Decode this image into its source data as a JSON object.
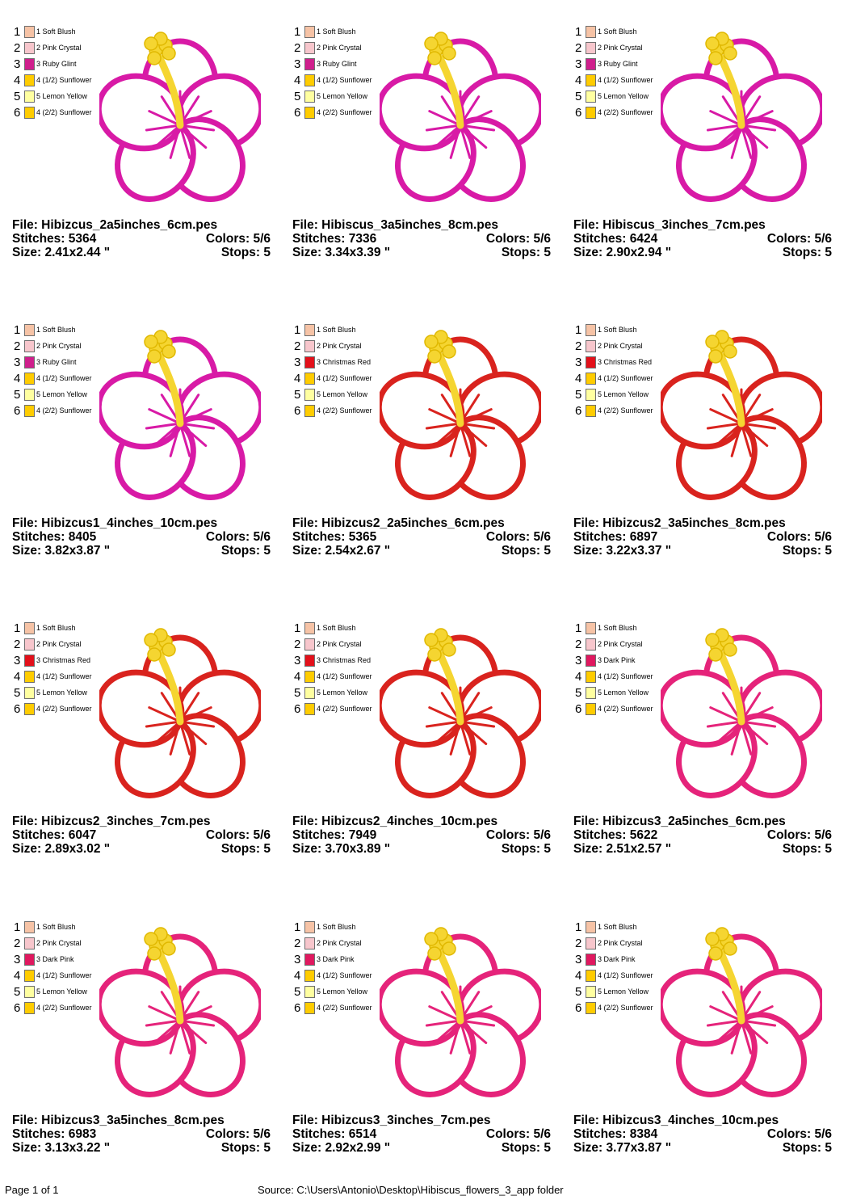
{
  "footer": {
    "page": "Page 1 of 1",
    "source": "Source: C:\\Users\\Antonio\\Desktop\\Hibiscus_flowers_3_app folder"
  },
  "designs": [
    {
      "file": "File: Hibizcus_2a5inches_6cm.pes",
      "stitches": "Stitches: 5364",
      "colors": "Colors: 5/6",
      "size": "Size: 2.41x2.44 \"",
      "stops": "Stops: 5",
      "petal": "#d81aa6",
      "threads": [
        {
          "num": "1",
          "name": "1 Soft Blush",
          "color": "#f6c3a6"
        },
        {
          "num": "2",
          "name": "2 Pink Crystal",
          "color": "#f7c6cc"
        },
        {
          "num": "3",
          "name": "3 Ruby Glint",
          "color": "#cf1f8c"
        },
        {
          "num": "4",
          "name": "4 (1/2) Sunflower",
          "color": "#ffcc00"
        },
        {
          "num": "5",
          "name": "5 Lemon Yellow",
          "color": "#ffffa0"
        },
        {
          "num": "6",
          "name": "4 (2/2) Sunflower",
          "color": "#ffcc00"
        }
      ]
    },
    {
      "file": "File: Hibiscus_3a5inches_8cm.pes",
      "stitches": "Stitches: 7336",
      "colors": "Colors: 5/6",
      "size": "Size: 3.34x3.39 \"",
      "stops": "Stops: 5",
      "petal": "#d81aa6",
      "threads": [
        {
          "num": "1",
          "name": "1 Soft Blush",
          "color": "#f6c3a6"
        },
        {
          "num": "2",
          "name": "2 Pink Crystal",
          "color": "#f7c6cc"
        },
        {
          "num": "3",
          "name": "3 Ruby Glint",
          "color": "#cf1f8c"
        },
        {
          "num": "4",
          "name": "4 (1/2) Sunflower",
          "color": "#ffcc00"
        },
        {
          "num": "5",
          "name": "5 Lemon Yellow",
          "color": "#ffffa0"
        },
        {
          "num": "6",
          "name": "4 (2/2) Sunflower",
          "color": "#ffcc00"
        }
      ]
    },
    {
      "file": "File: Hibiscus_3inches_7cm.pes",
      "stitches": "Stitches: 6424",
      "colors": "Colors: 5/6",
      "size": "Size: 2.90x2.94 \"",
      "stops": "Stops: 5",
      "petal": "#d81aa6",
      "threads": [
        {
          "num": "1",
          "name": "1 Soft Blush",
          "color": "#f6c3a6"
        },
        {
          "num": "2",
          "name": "2 Pink Crystal",
          "color": "#f7c6cc"
        },
        {
          "num": "3",
          "name": "3 Ruby Glint",
          "color": "#cf1f8c"
        },
        {
          "num": "4",
          "name": "4 (1/2) Sunflower",
          "color": "#ffcc00"
        },
        {
          "num": "5",
          "name": "5 Lemon Yellow",
          "color": "#ffffa0"
        },
        {
          "num": "6",
          "name": "4 (2/2) Sunflower",
          "color": "#ffcc00"
        }
      ]
    },
    {
      "file": "File: Hibizcus1_4inches_10cm.pes",
      "stitches": "Stitches: 8405",
      "colors": "Colors: 5/6",
      "size": "Size: 3.82x3.87 \"",
      "stops": "Stops: 5",
      "petal": "#d81aa6",
      "threads": [
        {
          "num": "1",
          "name": "1 Soft Blush",
          "color": "#f6c3a6"
        },
        {
          "num": "2",
          "name": "2 Pink Crystal",
          "color": "#f7c6cc"
        },
        {
          "num": "3",
          "name": "3 Ruby Glint",
          "color": "#cf1f8c"
        },
        {
          "num": "4",
          "name": "4 (1/2) Sunflower",
          "color": "#ffcc00"
        },
        {
          "num": "5",
          "name": "5 Lemon Yellow",
          "color": "#ffffa0"
        },
        {
          "num": "6",
          "name": "4 (2/2) Sunflower",
          "color": "#ffcc00"
        }
      ]
    },
    {
      "file": "File: Hibizcus2_2a5inches_6cm.pes",
      "stitches": "Stitches: 5365",
      "colors": "Colors: 5/6",
      "size": "Size: 2.54x2.67 \"",
      "stops": "Stops: 5",
      "petal": "#d9231e",
      "threads": [
        {
          "num": "1",
          "name": "1 Soft Blush",
          "color": "#f6c3a6"
        },
        {
          "num": "2",
          "name": "2 Pink Crystal",
          "color": "#f7c6cc"
        },
        {
          "num": "3",
          "name": "3 Christmas Red",
          "color": "#e3101a"
        },
        {
          "num": "4",
          "name": "4 (1/2) Sunflower",
          "color": "#ffcc00"
        },
        {
          "num": "5",
          "name": "5 Lemon Yellow",
          "color": "#ffffa0"
        },
        {
          "num": "6",
          "name": "4 (2/2) Sunflower",
          "color": "#ffcc00"
        }
      ]
    },
    {
      "file": "File: Hibizcus2_3a5inches_8cm.pes",
      "stitches": "Stitches: 6897",
      "colors": "Colors: 5/6",
      "size": "Size: 3.22x3.37 \"",
      "stops": "Stops: 5",
      "petal": "#d9231e",
      "threads": [
        {
          "num": "1",
          "name": "1 Soft Blush",
          "color": "#f6c3a6"
        },
        {
          "num": "2",
          "name": "2 Pink Crystal",
          "color": "#f7c6cc"
        },
        {
          "num": "3",
          "name": "3 Christmas Red",
          "color": "#e3101a"
        },
        {
          "num": "4",
          "name": "4 (1/2) Sunflower",
          "color": "#ffcc00"
        },
        {
          "num": "5",
          "name": "5 Lemon Yellow",
          "color": "#ffffa0"
        },
        {
          "num": "6",
          "name": "4 (2/2) Sunflower",
          "color": "#ffcc00"
        }
      ]
    },
    {
      "file": "File: Hibizcus2_3inches_7cm.pes",
      "stitches": "Stitches: 6047",
      "colors": "Colors: 5/6",
      "size": "Size: 2.89x3.02 \"",
      "stops": "Stops: 5",
      "petal": "#d9231e",
      "threads": [
        {
          "num": "1",
          "name": "1 Soft Blush",
          "color": "#f6c3a6"
        },
        {
          "num": "2",
          "name": "2 Pink Crystal",
          "color": "#f7c6cc"
        },
        {
          "num": "3",
          "name": "3 Christmas Red",
          "color": "#e3101a"
        },
        {
          "num": "4",
          "name": "4 (1/2) Sunflower",
          "color": "#ffcc00"
        },
        {
          "num": "5",
          "name": "5 Lemon Yellow",
          "color": "#ffffa0"
        },
        {
          "num": "6",
          "name": "4 (2/2) Sunflower",
          "color": "#ffcc00"
        }
      ]
    },
    {
      "file": "File: Hibizcus2_4inches_10cm.pes",
      "stitches": "Stitches: 7949",
      "colors": "Colors: 5/6",
      "size": "Size: 3.70x3.89 \"",
      "stops": "Stops: 5",
      "petal": "#d9231e",
      "threads": [
        {
          "num": "1",
          "name": "1 Soft Blush",
          "color": "#f6c3a6"
        },
        {
          "num": "2",
          "name": "2 Pink Crystal",
          "color": "#f7c6cc"
        },
        {
          "num": "3",
          "name": "3 Christmas Red",
          "color": "#e3101a"
        },
        {
          "num": "4",
          "name": "4 (1/2) Sunflower",
          "color": "#ffcc00"
        },
        {
          "num": "5",
          "name": "5 Lemon Yellow",
          "color": "#ffffa0"
        },
        {
          "num": "6",
          "name": "4 (2/2) Sunflower",
          "color": "#ffcc00"
        }
      ]
    },
    {
      "file": "File: Hibizcus3_2a5inches_6cm.pes",
      "stitches": "Stitches: 5622",
      "colors": "Colors: 5/6",
      "size": "Size: 2.51x2.57 \"",
      "stops": "Stops: 5",
      "petal": "#e5237a",
      "threads": [
        {
          "num": "1",
          "name": "1 Soft Blush",
          "color": "#f6c3a6"
        },
        {
          "num": "2",
          "name": "2 Pink Crystal",
          "color": "#f7c6cc"
        },
        {
          "num": "3",
          "name": "3 Dark Pink",
          "color": "#e0185f"
        },
        {
          "num": "4",
          "name": "4 (1/2) Sunflower",
          "color": "#ffcc00"
        },
        {
          "num": "5",
          "name": "5 Lemon Yellow",
          "color": "#ffffa0"
        },
        {
          "num": "6",
          "name": "4 (2/2) Sunflower",
          "color": "#ffcc00"
        }
      ]
    },
    {
      "file": "File: Hibizcus3_3a5inches_8cm.pes",
      "stitches": "Stitches: 6983",
      "colors": "Colors: 5/6",
      "size": "Size: 3.13x3.22 \"",
      "stops": "Stops: 5",
      "petal": "#e5237a",
      "threads": [
        {
          "num": "1",
          "name": "1 Soft Blush",
          "color": "#f6c3a6"
        },
        {
          "num": "2",
          "name": "2 Pink Crystal",
          "color": "#f7c6cc"
        },
        {
          "num": "3",
          "name": "3 Dark Pink",
          "color": "#e0185f"
        },
        {
          "num": "4",
          "name": "4 (1/2) Sunflower",
          "color": "#ffcc00"
        },
        {
          "num": "5",
          "name": "5 Lemon Yellow",
          "color": "#ffffa0"
        },
        {
          "num": "6",
          "name": "4 (2/2) Sunflower",
          "color": "#ffcc00"
        }
      ]
    },
    {
      "file": "File: Hibizcus3_3inches_7cm.pes",
      "stitches": "Stitches: 6514",
      "colors": "Colors: 5/6",
      "size": "Size: 2.92x2.99 \"",
      "stops": "Stops: 5",
      "petal": "#e5237a",
      "threads": [
        {
          "num": "1",
          "name": "1 Soft Blush",
          "color": "#f6c3a6"
        },
        {
          "num": "2",
          "name": "2 Pink Crystal",
          "color": "#f7c6cc"
        },
        {
          "num": "3",
          "name": "3 Dark Pink",
          "color": "#e0185f"
        },
        {
          "num": "4",
          "name": "4 (1/2) Sunflower",
          "color": "#ffcc00"
        },
        {
          "num": "5",
          "name": "5 Lemon Yellow",
          "color": "#ffffa0"
        },
        {
          "num": "6",
          "name": "4 (2/2) Sunflower",
          "color": "#ffcc00"
        }
      ]
    },
    {
      "file": "File: Hibizcus3_4inches_10cm.pes",
      "stitches": "Stitches: 8384",
      "colors": "Colors: 5/6",
      "size": "Size: 3.77x3.87 \"",
      "stops": "Stops: 5",
      "petal": "#e5237a",
      "threads": [
        {
          "num": "1",
          "name": "1 Soft Blush",
          "color": "#f6c3a6"
        },
        {
          "num": "2",
          "name": "2 Pink Crystal",
          "color": "#f7c6cc"
        },
        {
          "num": "3",
          "name": "3 Dark Pink",
          "color": "#e0185f"
        },
        {
          "num": "4",
          "name": "4 (1/2) Sunflower",
          "color": "#ffcc00"
        },
        {
          "num": "5",
          "name": "5 Lemon Yellow",
          "color": "#ffffa0"
        },
        {
          "num": "6",
          "name": "4 (2/2) Sunflower",
          "color": "#ffcc00"
        }
      ]
    }
  ]
}
